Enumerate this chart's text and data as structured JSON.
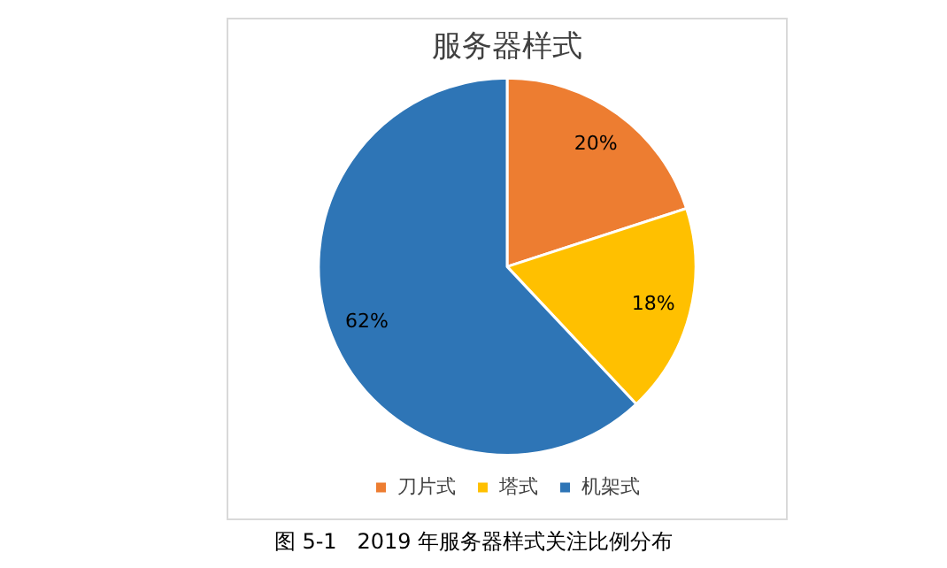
{
  "chart_data": {
    "type": "pie",
    "title": "服务器样式",
    "categories": [
      "刀片式",
      "塔式",
      "机架式"
    ],
    "values": [
      20,
      18,
      62
    ],
    "colors": [
      "#ed7d31",
      "#ffc000",
      "#2e75b6"
    ],
    "value_labels": [
      "20%",
      "18%",
      "62%"
    ],
    "legend": "bottom",
    "annotations": [
      "图 5-1   2019 年服务器样式关注比例分布"
    ]
  }
}
